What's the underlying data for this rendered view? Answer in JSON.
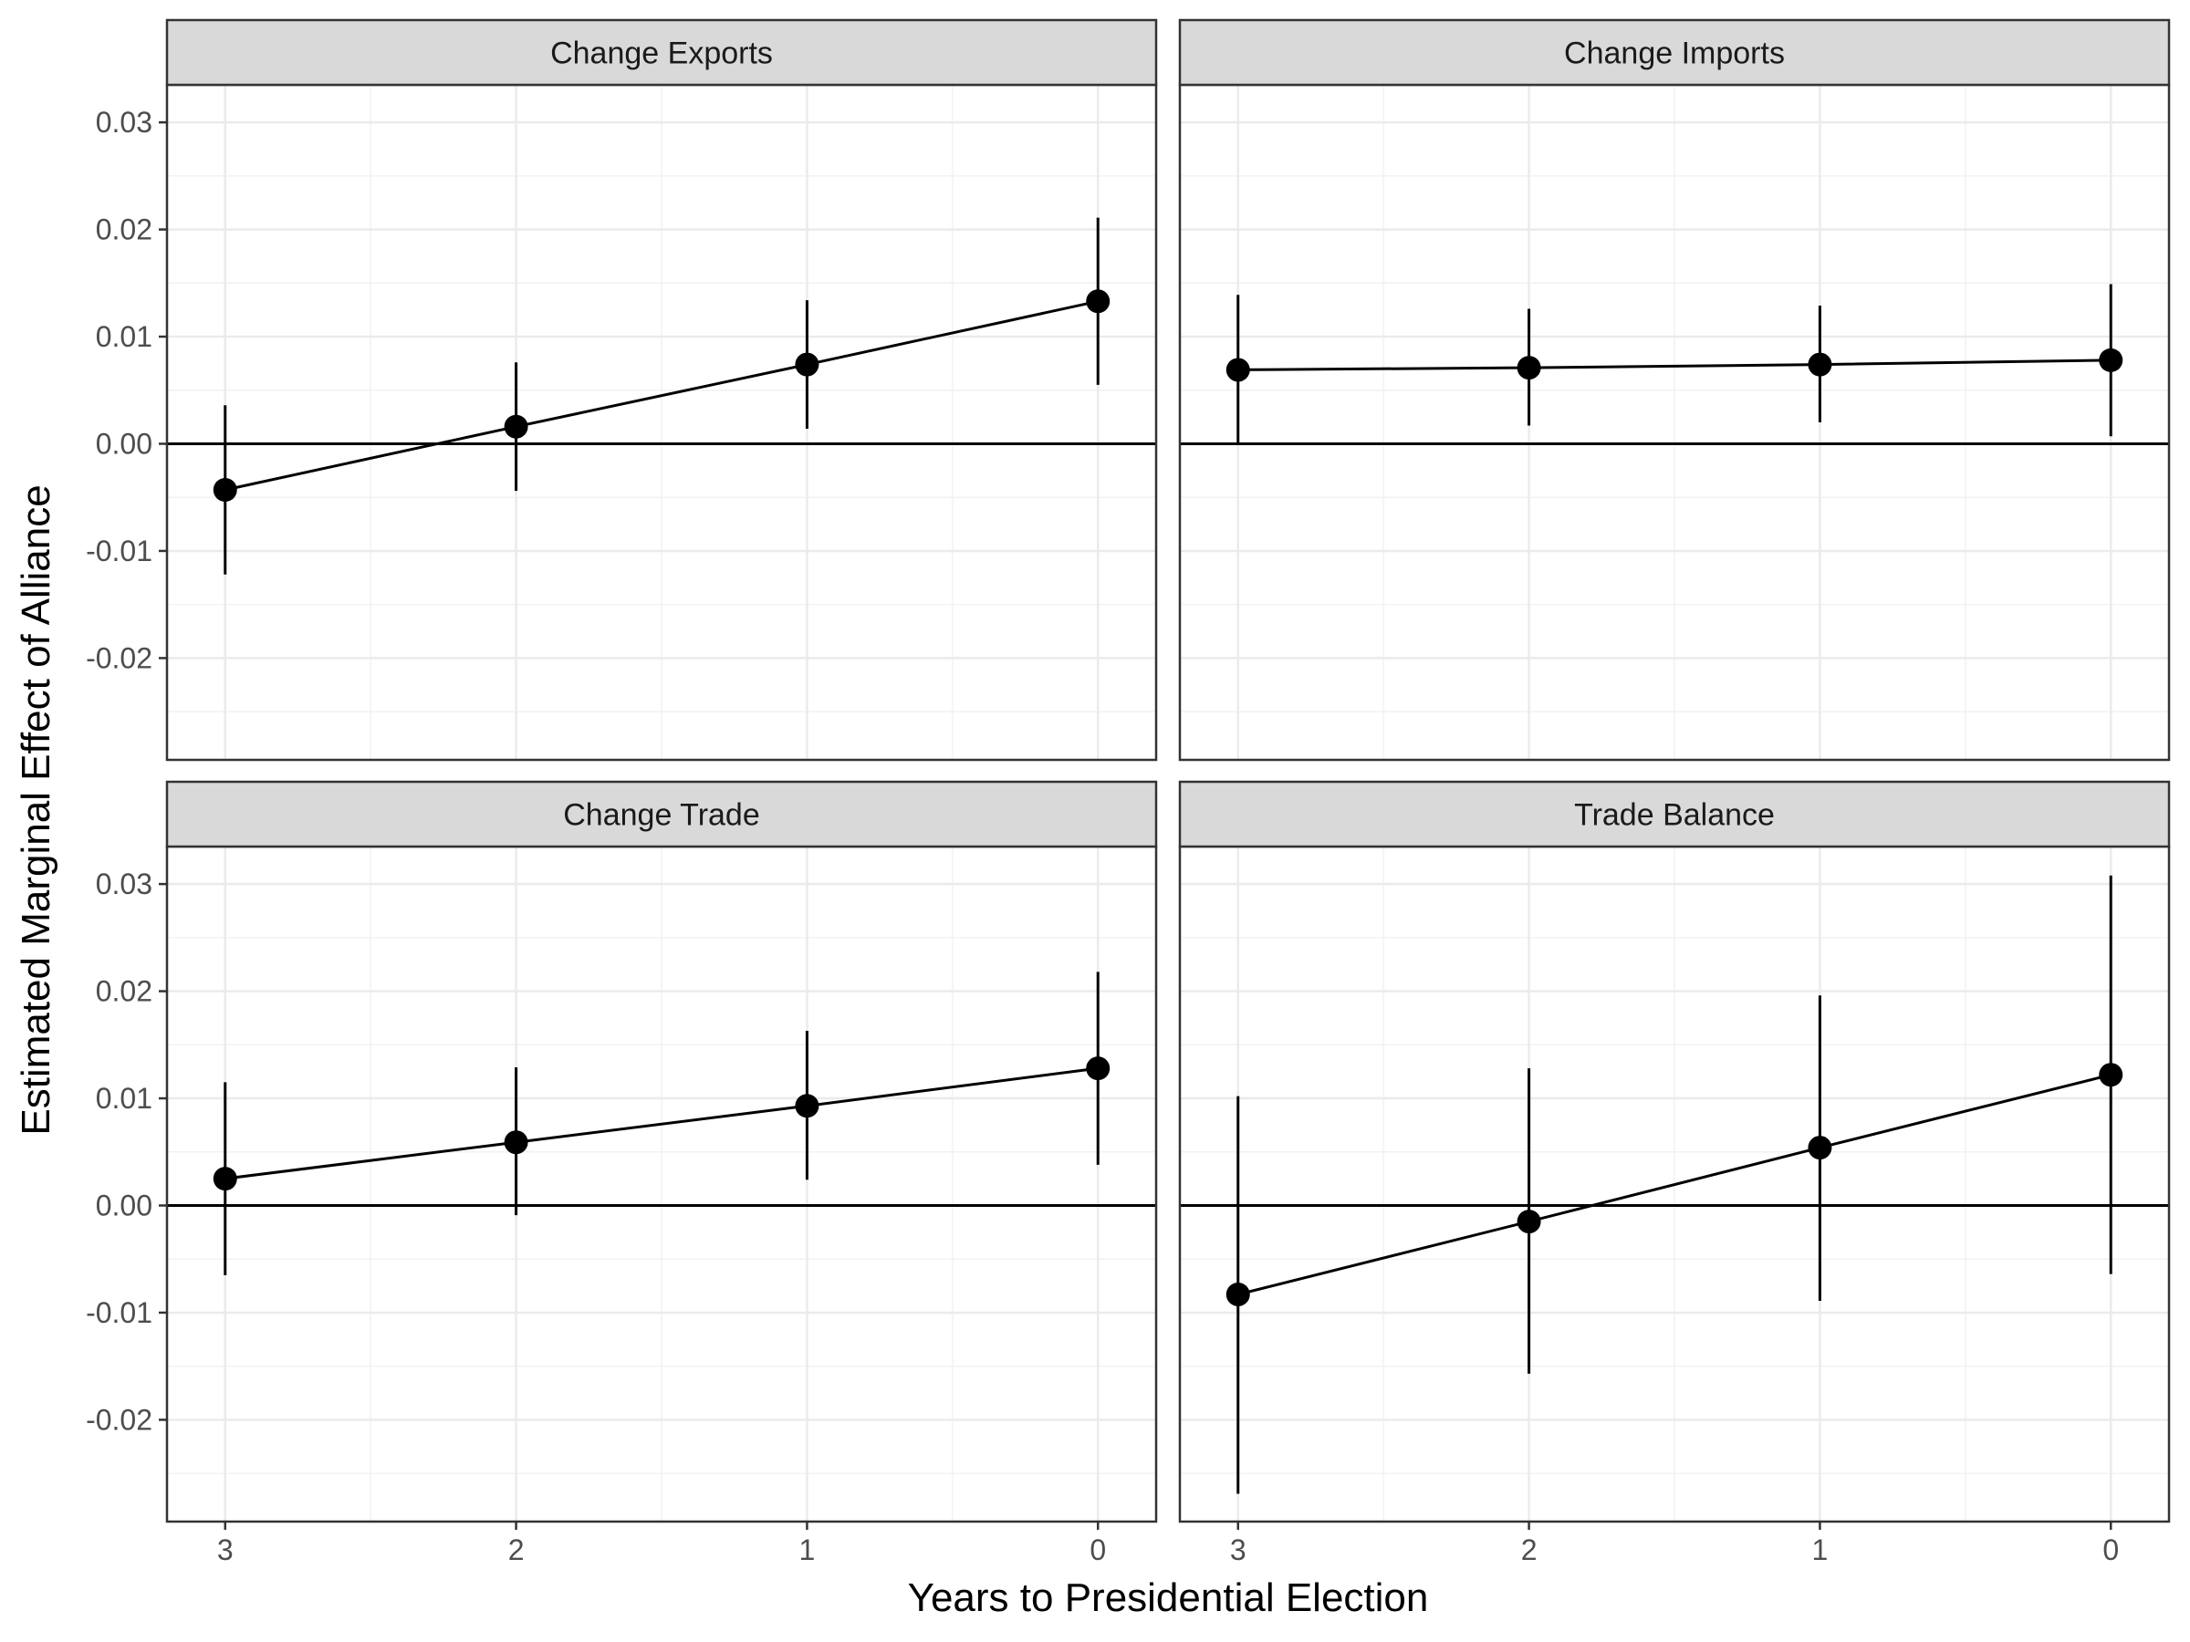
{
  "chart_data": {
    "type": "scatter",
    "layout": "facet-grid-2x2",
    "xlabel": "Years to Presidential Election",
    "ylabel": "Estimated Marginal Effect of Alliance",
    "x_categories": [
      "3",
      "2",
      "1",
      "0"
    ],
    "yticks": [
      0.03,
      0.02,
      0.01,
      0.0,
      -0.01,
      -0.02
    ],
    "ytick_labels": [
      "0.03",
      "0.02",
      "0.01",
      "0.00",
      "-0.01",
      "-0.02"
    ],
    "ylim": [
      -0.0295,
      0.0335
    ],
    "reference_line": 0,
    "grid": true,
    "panels": [
      {
        "title": "Change Exports",
        "points": [
          {
            "x": "3",
            "estimate": -0.0043,
            "lower": -0.0122,
            "upper": 0.0036
          },
          {
            "x": "2",
            "estimate": 0.0016,
            "lower": -0.0044,
            "upper": 0.0076
          },
          {
            "x": "1",
            "estimate": 0.0074,
            "lower": 0.0014,
            "upper": 0.0134
          },
          {
            "x": "0",
            "estimate": 0.0133,
            "lower": 0.0055,
            "upper": 0.0211
          }
        ]
      },
      {
        "title": "Change Imports",
        "points": [
          {
            "x": "3",
            "estimate": 0.0069,
            "lower": -0.0001,
            "upper": 0.0139
          },
          {
            "x": "2",
            "estimate": 0.0071,
            "lower": 0.0017,
            "upper": 0.0126
          },
          {
            "x": "1",
            "estimate": 0.0074,
            "lower": 0.002,
            "upper": 0.0129
          },
          {
            "x": "0",
            "estimate": 0.0078,
            "lower": 0.0007,
            "upper": 0.0149
          }
        ]
      },
      {
        "title": "Change Trade",
        "points": [
          {
            "x": "3",
            "estimate": 0.0025,
            "lower": -0.0065,
            "upper": 0.0115
          },
          {
            "x": "2",
            "estimate": 0.0059,
            "lower": -0.0009,
            "upper": 0.0129
          },
          {
            "x": "1",
            "estimate": 0.0093,
            "lower": 0.0024,
            "upper": 0.0163
          },
          {
            "x": "0",
            "estimate": 0.0128,
            "lower": 0.0038,
            "upper": 0.0218
          }
        ]
      },
      {
        "title": "Trade Balance",
        "points": [
          {
            "x": "3",
            "estimate": -0.0083,
            "lower": -0.0269,
            "upper": 0.0102
          },
          {
            "x": "2",
            "estimate": -0.0015,
            "lower": -0.0157,
            "upper": 0.0128
          },
          {
            "x": "1",
            "estimate": 0.0054,
            "lower": -0.0089,
            "upper": 0.0196
          },
          {
            "x": "0",
            "estimate": 0.0122,
            "lower": -0.0064,
            "upper": 0.0308
          }
        ]
      }
    ]
  }
}
